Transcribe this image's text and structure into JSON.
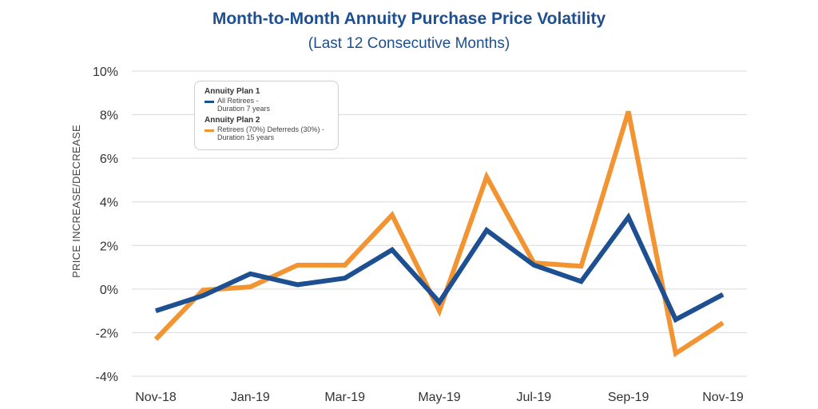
{
  "colors": {
    "plan1": "#1d4f91",
    "plan2": "#f39432",
    "grid": "#d9d9d9",
    "title": "#1d4f91"
  },
  "chart_data": {
    "type": "line",
    "title": "Month-to-Month Annuity Purchase Price Volatility",
    "subtitle": "(Last 12 Consecutive Months)",
    "ylabel": "PRICE INCREASE/DECREASE",
    "xlabel": "",
    "ylim": [
      -4,
      10
    ],
    "yticks": [
      -4,
      -2,
      0,
      2,
      4,
      6,
      8,
      10
    ],
    "ytick_labels": [
      "-4%",
      "-2%",
      "0%",
      "2%",
      "4%",
      "6%",
      "8%",
      "10%"
    ],
    "categories": [
      "Nov-18",
      "Dec-18",
      "Jan-19",
      "Feb-19",
      "Mar-19",
      "Apr-19",
      "May-19",
      "Jun-19",
      "Jul-19",
      "Aug-19",
      "Sep-19",
      "Oct-19",
      "Nov-19"
    ],
    "xtick_labels": [
      "Nov-18",
      "Jan-19",
      "Mar-19",
      "May-19",
      "Jul-19",
      "Sep-19",
      "Nov-19"
    ],
    "grid": true,
    "legend_position": "top-left",
    "series": [
      {
        "group": "Annuity Plan 1",
        "name": "All Retirees - Duration 7 years",
        "name_lines": [
          "All Retirees -",
          "Duration 7 years"
        ],
        "color": "#1d4f91",
        "values": [
          -1.0,
          -0.3,
          0.7,
          0.2,
          0.5,
          1.8,
          -0.6,
          2.7,
          1.1,
          0.35,
          3.3,
          -1.4,
          -0.25
        ]
      },
      {
        "group": "Annuity Plan 2",
        "name": "Retirees (70%) Deferreds (30%) - Duration 15 years",
        "name_lines": [
          "Retirees (70%) Deferreds (30%) -",
          "Duration 15 years"
        ],
        "color": "#f39432",
        "values": [
          -2.3,
          -0.05,
          0.1,
          1.1,
          1.1,
          3.4,
          -1.0,
          5.15,
          1.2,
          1.05,
          8.15,
          -2.95,
          -1.55
        ]
      }
    ]
  }
}
